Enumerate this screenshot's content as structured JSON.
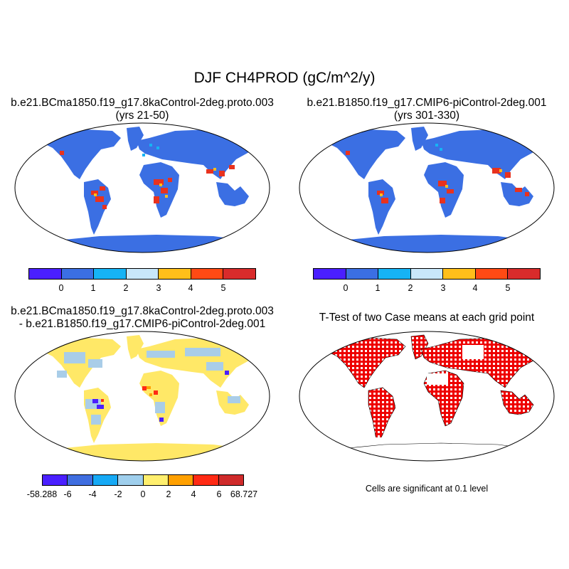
{
  "main_title": "DJF CH4PROD (gC/m^2/y)",
  "panels": {
    "top_left": {
      "title_line1": "b.e21.BCma1850.f19_g17.8kaControl-2deg.proto.003",
      "title_line2": "(yrs 21-50)"
    },
    "top_right": {
      "title_line1": "b.e21.B1850.f19_g17.CMIP6-piControl-2deg.001",
      "title_line2": "(yrs 301-330)"
    },
    "bottom_left": {
      "title_line1": "b.e21.BCma1850.f19_g17.8kaControl-2deg.proto.003",
      "title_line2": "- b.e21.B1850.f19_g17.CMIP6-piControl-2deg.001"
    },
    "bottom_right": {
      "title_line1": "T-Test of two Case means at each grid point",
      "note": "Cells are significant at 0.1 level"
    }
  },
  "colorbars": {
    "abs": {
      "colors": [
        "#4a1fff",
        "#3b6fe3",
        "#16b3f5",
        "#c8e7fa",
        "#ffbf1a",
        "#ff4a14",
        "#d92b2b"
      ],
      "labels": [
        "0",
        "1",
        "2",
        "3",
        "4",
        "5"
      ]
    },
    "diff": {
      "colors": [
        "#4a1fff",
        "#3f6ee0",
        "#16a9f5",
        "#9fcfed",
        "#ffef6e",
        "#ffa000",
        "#ff2a14",
        "#cf2a2a"
      ],
      "labels": [
        "-58.288",
        "-6",
        "-4",
        "-2",
        "0",
        "2",
        "4",
        "6",
        "68.727"
      ]
    }
  },
  "colors": {
    "land_abs": "#3b6fe3",
    "land_diff": "#ffe867",
    "diff_negative": "#a9cde8",
    "significant": "#ee0000",
    "high": "#e8321e"
  }
}
